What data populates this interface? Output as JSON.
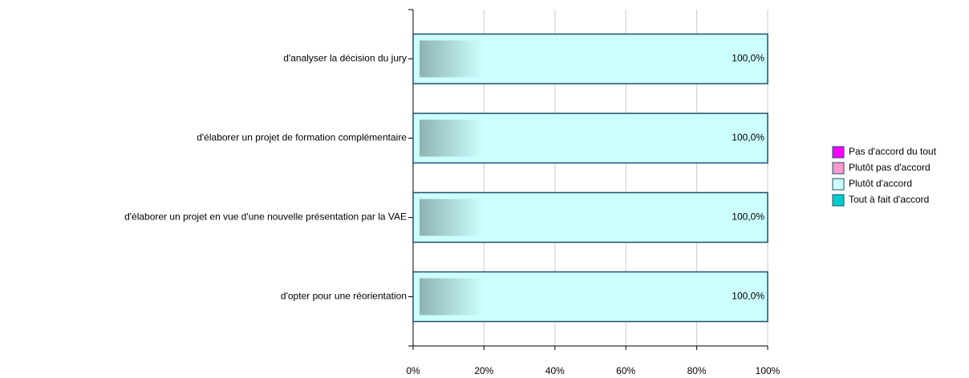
{
  "chart_data": {
    "type": "stacked-bar-horizontal",
    "categories": [
      "d'analyser la décision du jury",
      "d'élaborer un projet de formation complémentaire",
      "d'élaborer un projet en vue d'une nouvelle présentation par la VAE",
      "d'opter pour une réorientation"
    ],
    "series": [
      {
        "name": "Pas d'accord du tout",
        "color": "#ff00ff",
        "values": [
          0,
          0,
          0,
          0
        ]
      },
      {
        "name": "Plutôt pas d'accord",
        "color": "#ff99cc",
        "values": [
          0,
          0,
          0,
          0
        ]
      },
      {
        "name": "Plutôt d'accord",
        "color": "#ccffff",
        "values": [
          100,
          100,
          100,
          100
        ],
        "value_labels": [
          "100,0%",
          "100,0%",
          "100,0%",
          "100,0%"
        ]
      },
      {
        "name": "Tout à fait d'accord",
        "color": "#00cccc",
        "values": [
          0,
          0,
          0,
          0
        ]
      }
    ],
    "xlim": [
      0,
      100
    ],
    "xticks": [
      {
        "value": 0,
        "label": "0%"
      },
      {
        "value": 20,
        "label": "20%"
      },
      {
        "value": 40,
        "label": "40%"
      },
      {
        "value": 60,
        "label": "60%"
      },
      {
        "value": 80,
        "label": "80%"
      },
      {
        "value": 100,
        "label": "100%"
      }
    ],
    "grid": true,
    "legend": "right"
  }
}
